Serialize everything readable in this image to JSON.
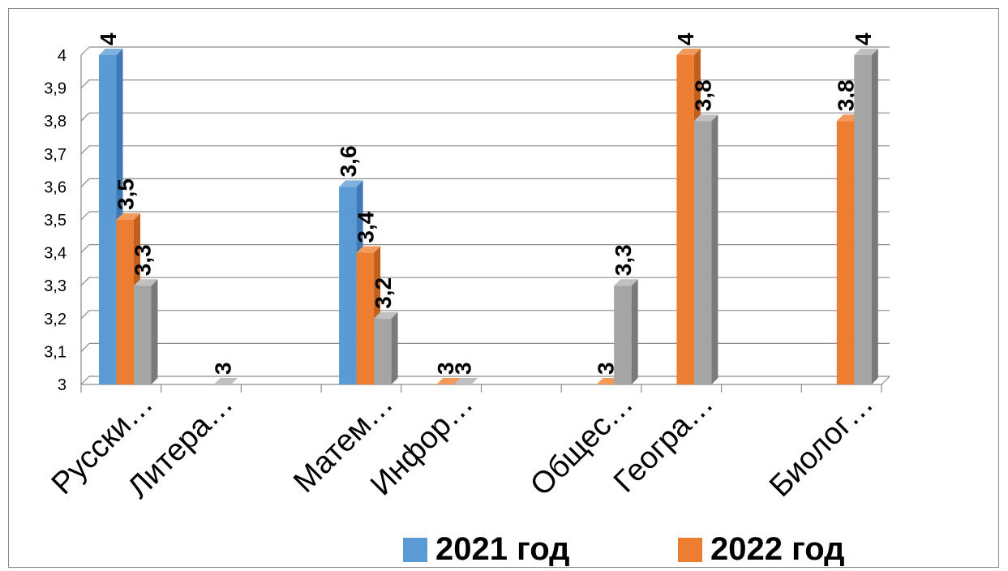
{
  "chart_data": {
    "type": "bar",
    "categories": [
      "Русски…",
      "Литера…",
      "",
      "Матем…",
      "Инфор…",
      "",
      "Общес…",
      "Геогра…",
      "",
      "Биолог…"
    ],
    "series": [
      {
        "name": "2021 год",
        "color": "#5b9bd5",
        "values": [
          4,
          null,
          null,
          3.6,
          null,
          null,
          null,
          null,
          null,
          null
        ]
      },
      {
        "name": "2022 год",
        "color": "#ed7d31",
        "values": [
          3.5,
          null,
          null,
          3.4,
          3,
          null,
          3,
          4,
          null,
          3.8
        ]
      },
      {
        "color": "#a5a5a5",
        "values": [
          3.3,
          3,
          null,
          3.2,
          3,
          null,
          3.3,
          3.8,
          null,
          4
        ]
      }
    ],
    "value_labels": {
      "s0": [
        "4",
        "",
        "",
        "3,6",
        "",
        "",
        "",
        "",
        "",
        ""
      ],
      "s1": [
        "3,5",
        "",
        "",
        "3,4",
        "3",
        "",
        "3",
        "4",
        "",
        "3,8"
      ],
      "s2": [
        "3,3",
        "3",
        "",
        "3,2",
        "3",
        "",
        "3,3",
        "3,8",
        "",
        "4"
      ]
    },
    "ylim": [
      3,
      4
    ],
    "yticks": [
      "3",
      "3,1",
      "3,2",
      "3,3",
      "3,4",
      "3,5",
      "3,6",
      "3,7",
      "3,8",
      "3,9",
      "4"
    ],
    "grid": true,
    "legend": "bottom"
  }
}
